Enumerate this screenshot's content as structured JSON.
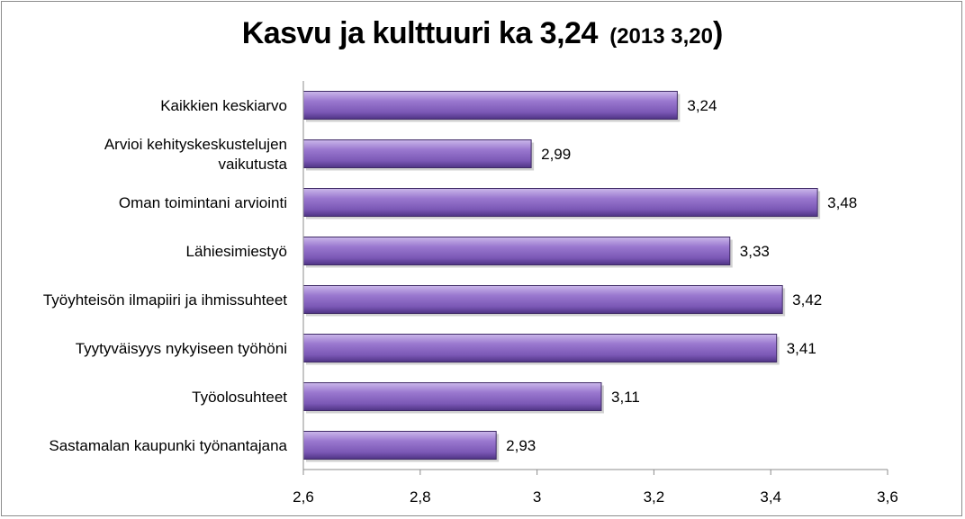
{
  "chart_data": {
    "type": "bar",
    "orientation": "horizontal",
    "title": "Kasvu ja kulttuuri  ka 3,24",
    "subtitle": "2013  3,20",
    "categories": [
      "Kaikkien keskiarvo",
      "Arvioi kehityskeskustelujen vaikutusta",
      "Oman toimintani arviointi",
      "Lähiesimiestyö",
      "Työyhteisön ilmapiiri ja ihmissuhteet",
      "Tyytyväisyys nykyiseen työhöni",
      "Työolosuhteet",
      "Sastamalan kaupunki työnantajana"
    ],
    "category_lines": [
      [
        "Kaikkien keskiarvo"
      ],
      [
        "Arvioi kehityskeskustelujen",
        "vaikutusta"
      ],
      [
        "Oman toimintani arviointi"
      ],
      [
        "Lähiesimiestyö"
      ],
      [
        "Työyhteisön ilmapiiri ja ihmissuhteet"
      ],
      [
        "Tyytyväisyys nykyiseen työhöni"
      ],
      [
        "Työolosuhteet"
      ],
      [
        "Sastamalan kaupunki työnantajana"
      ]
    ],
    "values": [
      3.24,
      2.99,
      3.48,
      3.33,
      3.42,
      3.41,
      3.11,
      2.93
    ],
    "value_labels": [
      "3,24",
      "2,99",
      "3,48",
      "3,33",
      "3,42",
      "3,41",
      "3,11",
      "2,93"
    ],
    "xlim": [
      2.6,
      3.6
    ],
    "xticks": [
      2.6,
      2.8,
      3.0,
      3.2,
      3.4,
      3.6
    ],
    "xtick_labels": [
      "2,6",
      "2,8",
      "3",
      "3,2",
      "3,4",
      "3,6"
    ],
    "xlabel": "",
    "ylabel": "",
    "grid": false,
    "legend": "none",
    "colors": {
      "bar_light": "#b9a3dc",
      "bar_mid": "#8f6cc4",
      "bar_dark": "#5e3f96",
      "bar_edge": "#3f2a66",
      "axis": "#8c8c8c",
      "frame": "#8c8c8c"
    }
  }
}
